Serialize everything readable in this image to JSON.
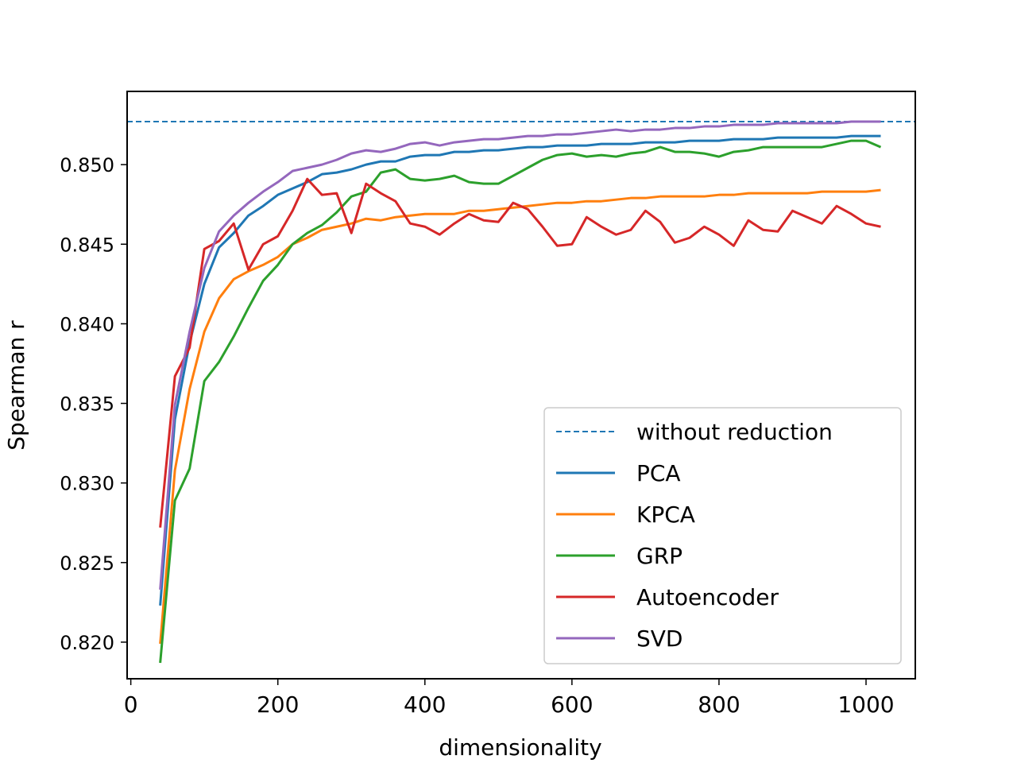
{
  "chart_data": {
    "type": "line",
    "xlabel": "dimensionality",
    "ylabel": "Spearman r",
    "xlim": [
      -5,
      1067
    ],
    "ylim": [
      0.8177,
      0.8546
    ],
    "xticks": [
      0,
      200,
      400,
      600,
      800,
      1000
    ],
    "yticks": [
      0.82,
      0.825,
      0.83,
      0.835,
      0.84,
      0.845,
      0.85
    ],
    "ytick_labels": [
      "0.820",
      "0.825",
      "0.830",
      "0.835",
      "0.840",
      "0.845",
      "0.850"
    ],
    "grid": false,
    "legend_position": "lower-right",
    "x": [
      40,
      60,
      80,
      100,
      120,
      140,
      160,
      180,
      200,
      220,
      240,
      260,
      280,
      300,
      320,
      340,
      360,
      380,
      400,
      420,
      440,
      460,
      480,
      500,
      520,
      540,
      560,
      580,
      600,
      620,
      640,
      660,
      680,
      700,
      720,
      740,
      760,
      780,
      800,
      820,
      840,
      860,
      880,
      900,
      920,
      940,
      960,
      980,
      1000,
      1020
    ],
    "reference": {
      "name": "without reduction",
      "value": 0.8527,
      "color": "#1f77b4",
      "style": "dashed"
    },
    "series": [
      {
        "name": "PCA",
        "color": "#1f77b4",
        "values": [
          0.8223,
          0.834,
          0.8388,
          0.8425,
          0.8448,
          0.8457,
          0.8468,
          0.8474,
          0.8481,
          0.8485,
          0.8489,
          0.8494,
          0.8495,
          0.8497,
          0.85,
          0.8502,
          0.8502,
          0.8505,
          0.8506,
          0.8506,
          0.8508,
          0.8508,
          0.8509,
          0.8509,
          0.851,
          0.8511,
          0.8511,
          0.8512,
          0.8512,
          0.8512,
          0.8513,
          0.8513,
          0.8513,
          0.8514,
          0.8514,
          0.8514,
          0.8515,
          0.8515,
          0.8515,
          0.8516,
          0.8516,
          0.8516,
          0.8517,
          0.8517,
          0.8517,
          0.8517,
          0.8517,
          0.8518,
          0.8518,
          0.8518
        ]
      },
      {
        "name": "KPCA",
        "color": "#ff7f0e",
        "values": [
          0.8199,
          0.8308,
          0.8359,
          0.8395,
          0.8416,
          0.8428,
          0.8433,
          0.8437,
          0.8442,
          0.845,
          0.8454,
          0.8459,
          0.8461,
          0.8463,
          0.8466,
          0.8465,
          0.8467,
          0.8468,
          0.8469,
          0.8469,
          0.8469,
          0.8471,
          0.8471,
          0.8472,
          0.8473,
          0.8474,
          0.8475,
          0.8476,
          0.8476,
          0.8477,
          0.8477,
          0.8478,
          0.8479,
          0.8479,
          0.848,
          0.848,
          0.848,
          0.848,
          0.8481,
          0.8481,
          0.8482,
          0.8482,
          0.8482,
          0.8482,
          0.8482,
          0.8483,
          0.8483,
          0.8483,
          0.8483,
          0.8484
        ]
      },
      {
        "name": "GRP",
        "color": "#2ca02c",
        "values": [
          0.8187,
          0.8289,
          0.8309,
          0.8364,
          0.8376,
          0.8392,
          0.841,
          0.8427,
          0.8437,
          0.845,
          0.8457,
          0.8462,
          0.847,
          0.848,
          0.8483,
          0.8495,
          0.8497,
          0.8491,
          0.849,
          0.8491,
          0.8493,
          0.8489,
          0.8488,
          0.8488,
          0.8493,
          0.8498,
          0.8503,
          0.8506,
          0.8507,
          0.8505,
          0.8506,
          0.8505,
          0.8507,
          0.8508,
          0.8511,
          0.8508,
          0.8508,
          0.8507,
          0.8505,
          0.8508,
          0.8509,
          0.8511,
          0.8511,
          0.8511,
          0.8511,
          0.8511,
          0.8513,
          0.8515,
          0.8515,
          0.8511
        ]
      },
      {
        "name": "Autoencoder",
        "color": "#d62728",
        "values": [
          0.8272,
          0.8367,
          0.8385,
          0.8447,
          0.8452,
          0.8463,
          0.8434,
          0.845,
          0.8455,
          0.8471,
          0.8491,
          0.8481,
          0.8482,
          0.8457,
          0.8488,
          0.8482,
          0.8477,
          0.8463,
          0.8461,
          0.8456,
          0.8463,
          0.8469,
          0.8465,
          0.8464,
          0.8476,
          0.8472,
          0.8461,
          0.8449,
          0.845,
          0.8467,
          0.8461,
          0.8456,
          0.8459,
          0.8471,
          0.8464,
          0.8451,
          0.8454,
          0.8461,
          0.8456,
          0.8449,
          0.8465,
          0.8459,
          0.8458,
          0.8471,
          0.8467,
          0.8463,
          0.8474,
          0.8469,
          0.8463,
          0.8461
        ]
      },
      {
        "name": "SVD",
        "color": "#9467bd",
        "values": [
          0.8233,
          0.8349,
          0.8395,
          0.8435,
          0.8458,
          0.8468,
          0.8476,
          0.8483,
          0.8489,
          0.8496,
          0.8498,
          0.85,
          0.8503,
          0.8507,
          0.8509,
          0.8508,
          0.851,
          0.8513,
          0.8514,
          0.8512,
          0.8514,
          0.8515,
          0.8516,
          0.8516,
          0.8517,
          0.8518,
          0.8518,
          0.8519,
          0.8519,
          0.852,
          0.8521,
          0.8522,
          0.8521,
          0.8522,
          0.8522,
          0.8523,
          0.8523,
          0.8524,
          0.8524,
          0.8525,
          0.8525,
          0.8525,
          0.8526,
          0.8526,
          0.8526,
          0.8526,
          0.8526,
          0.8527,
          0.8527,
          0.8527
        ]
      }
    ]
  }
}
